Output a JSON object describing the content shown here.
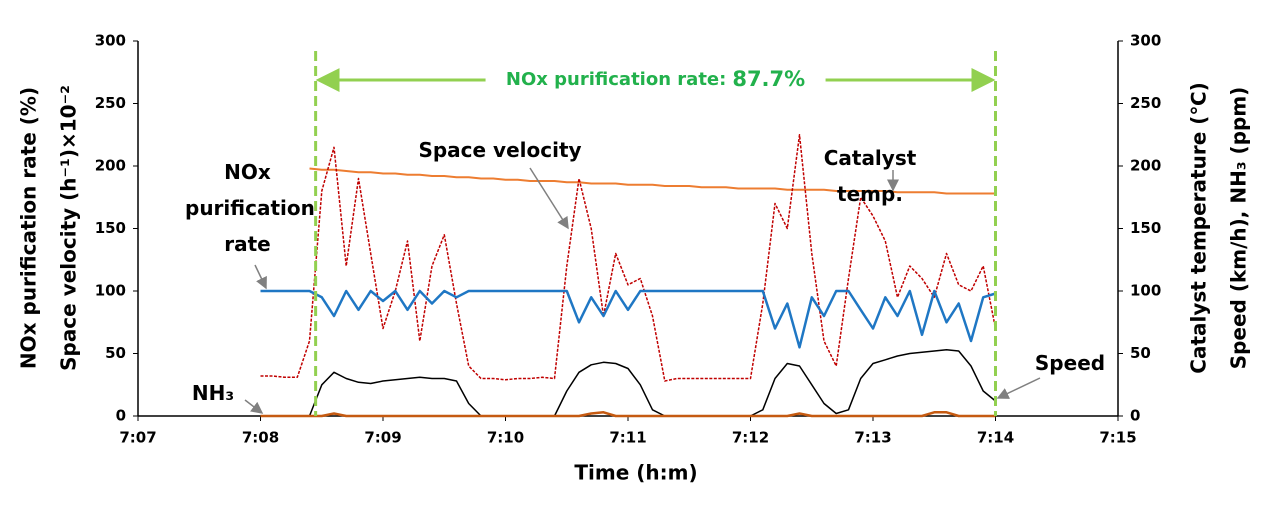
{
  "chart_data": {
    "type": "line",
    "annotation": {
      "text": "NOx purification rate:",
      "value_label": "87.7%",
      "color": "#22b14c"
    },
    "marker_lines": [
      428.45,
      434.0
    ],
    "marker_color": "#92d050",
    "xlabel": "Time (h:m)",
    "ylabel": [
      "NOx purification rate (%)",
      "Space velocity (h⁻¹)×10⁻²"
    ],
    "y2label": [
      "Catalyst temperature (℃)",
      "Speed (km/h), NH₃ (ppm)"
    ],
    "xlim": [
      427,
      435
    ],
    "xticks": [
      {
        "value": 427,
        "label": "7:07"
      },
      {
        "value": 428,
        "label": "7:08"
      },
      {
        "value": 429,
        "label": "7:09"
      },
      {
        "value": 430,
        "label": "7:10"
      },
      {
        "value": 431,
        "label": "7:11"
      },
      {
        "value": 432,
        "label": "7:12"
      },
      {
        "value": 433,
        "label": "7:13"
      },
      {
        "value": 434,
        "label": "7:14"
      },
      {
        "value": 435,
        "label": "7:15"
      }
    ],
    "ylim": [
      0,
      300
    ],
    "yticks": [
      0,
      50,
      100,
      150,
      200,
      250,
      300
    ],
    "y2lim": [
      0,
      300
    ],
    "y2ticks": [
      0,
      50,
      100,
      150,
      200,
      250,
      300
    ],
    "x": [
      428,
      428.1,
      428.2,
      428.3,
      428.4,
      428.5,
      428.6,
      428.7,
      428.8,
      428.9,
      429,
      429.1,
      429.2,
      429.3,
      429.4,
      429.5,
      429.6,
      429.7,
      429.8,
      429.9,
      430,
      430.1,
      430.2,
      430.3,
      430.4,
      430.5,
      430.6,
      430.7,
      430.8,
      430.9,
      431,
      431.1,
      431.2,
      431.3,
      431.4,
      431.5,
      431.6,
      431.7,
      431.8,
      431.9,
      432,
      432.1,
      432.2,
      432.3,
      432.4,
      432.5,
      432.6,
      432.7,
      432.8,
      432.9,
      433,
      433.1,
      433.2,
      433.3,
      433.4,
      433.5,
      433.6,
      433.7,
      433.8,
      433.9,
      434
    ],
    "series": [
      {
        "name": "Catalyst temp.",
        "color": "#ed7d31",
        "axis": "y2",
        "values": [
          null,
          null,
          null,
          null,
          198,
          197,
          197,
          196,
          195,
          195,
          194,
          194,
          193,
          193,
          192,
          192,
          191,
          191,
          190,
          190,
          189,
          189,
          188,
          188,
          188,
          187,
          187,
          186,
          186,
          186,
          185,
          185,
          185,
          184,
          184,
          184,
          183,
          183,
          183,
          182,
          182,
          182,
          182,
          181,
          181,
          181,
          181,
          180,
          180,
          180,
          180,
          180,
          179,
          179,
          179,
          179,
          178,
          178,
          178,
          178,
          178
        ]
      },
      {
        "name": "Space velocity",
        "color": "#c00000",
        "values": [
          32,
          32,
          31,
          31,
          60,
          180,
          215,
          120,
          190,
          130,
          70,
          100,
          140,
          60,
          120,
          145,
          90,
          40,
          30,
          30,
          29,
          30,
          30,
          31,
          30,
          120,
          190,
          150,
          80,
          130,
          105,
          110,
          80,
          28,
          30,
          30,
          30,
          30,
          30,
          30,
          30,
          90,
          170,
          150,
          225,
          130,
          60,
          40,
          110,
          175,
          160,
          140,
          95,
          120,
          110,
          95,
          130,
          105,
          100,
          120,
          70
        ]
      },
      {
        "name": "NOx purification rate",
        "color": "#1f77c4",
        "values": [
          100,
          100,
          100,
          100,
          100,
          95,
          80,
          100,
          85,
          100,
          92,
          100,
          85,
          100,
          90,
          100,
          95,
          100,
          100,
          100,
          100,
          100,
          100,
          100,
          100,
          100,
          75,
          95,
          80,
          100,
          85,
          100,
          100,
          100,
          100,
          100,
          100,
          100,
          100,
          100,
          100,
          100,
          70,
          90,
          55,
          95,
          80,
          100,
          100,
          85,
          70,
          95,
          80,
          100,
          65,
          100,
          75,
          90,
          60,
          95,
          98
        ]
      },
      {
        "name": "Speed",
        "color": "#000000",
        "axis": "y2",
        "values": [
          0,
          0,
          0,
          0,
          0,
          25,
          35,
          30,
          27,
          26,
          28,
          29,
          30,
          31,
          30,
          30,
          28,
          10,
          0,
          0,
          0,
          0,
          0,
          0,
          0,
          20,
          35,
          41,
          43,
          42,
          38,
          25,
          5,
          0,
          0,
          0,
          0,
          0,
          0,
          0,
          0,
          5,
          30,
          42,
          40,
          25,
          10,
          2,
          5,
          30,
          42,
          45,
          48,
          50,
          51,
          52,
          53,
          52,
          40,
          20,
          12
        ]
      },
      {
        "name": "NH₃",
        "color": "#c55a11",
        "axis": "y2",
        "values": [
          0,
          0,
          0,
          0,
          0,
          0,
          2,
          0,
          0,
          0,
          0,
          0,
          0,
          0,
          0,
          0,
          0,
          0,
          0,
          0,
          0,
          0,
          0,
          0,
          0,
          0,
          0,
          2,
          3,
          0,
          0,
          0,
          0,
          0,
          0,
          0,
          0,
          0,
          0,
          0,
          0,
          0,
          0,
          0,
          2,
          0,
          0,
          0,
          0,
          0,
          0,
          0,
          0,
          0,
          0,
          3,
          3,
          0,
          0,
          0,
          0
        ]
      }
    ]
  }
}
